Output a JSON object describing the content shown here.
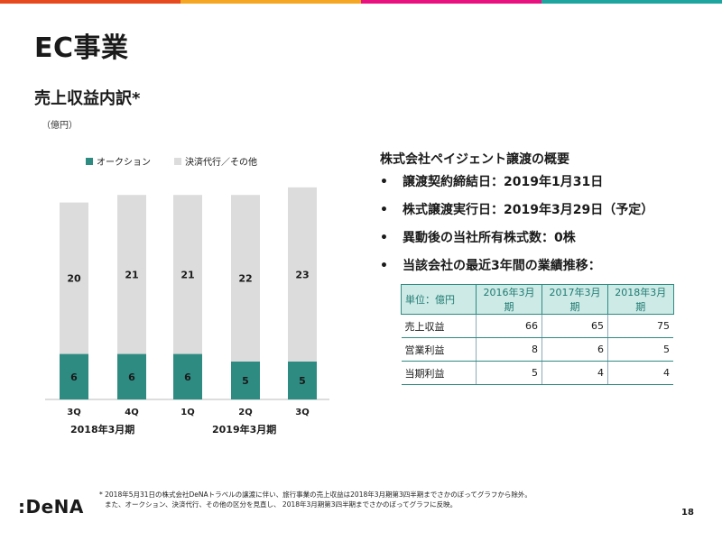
{
  "topbar": {
    "colors": [
      "#e84a1f",
      "#f5a623",
      "#e8117f",
      "#1fa5a0"
    ]
  },
  "header": {
    "title": "EC事業"
  },
  "section": {
    "subtitle": "売上収益内訳*",
    "unit": "（億円）"
  },
  "legend": [
    {
      "label": "オークション",
      "color": "#2e8b82"
    },
    {
      "label": "決済代行／その他",
      "color": "#dcdcdc"
    }
  ],
  "chart_data": {
    "type": "bar",
    "stacked": true,
    "categories": [
      "3Q",
      "4Q",
      "1Q",
      "2Q",
      "3Q"
    ],
    "series": [
      {
        "name": "オークション",
        "color": "#2e8b82",
        "values": [
          6,
          6,
          6,
          5,
          5
        ]
      },
      {
        "name": "決済代行／その他",
        "color": "#dcdcdc",
        "values": [
          20,
          21,
          21,
          22,
          23
        ]
      }
    ],
    "periods": [
      {
        "label": "2018年3月期"
      },
      {
        "label": "2019年3月期"
      }
    ],
    "xlabel": "",
    "ylabel": ""
  },
  "info": {
    "title": "株式会社ペイジェント譲渡の概要",
    "bullet_symbol": "•",
    "bullets": [
      "譲渡契約締結日：2019年1月31日",
      "株式譲渡実行日：2019年3月29日（予定）",
      "異動後の当社所有株式数：0株",
      "当該会社の最近3年間の業績推移："
    ]
  },
  "table": {
    "headers": [
      "単位：億円",
      "2016年3月期",
      "2017年3月期",
      "2018年3月期"
    ],
    "rows": [
      {
        "label": "売上収益",
        "values": [
          "66",
          "65",
          "75"
        ]
      },
      {
        "label": "営業利益",
        "values": [
          "8",
          "6",
          "5"
        ]
      },
      {
        "label": "当期利益",
        "values": [
          "5",
          "4",
          "4"
        ]
      }
    ]
  },
  "footnote": {
    "line1": "* 2018年5月31日の株式会社DeNAトラベルの譲渡に伴い、旅行事業の売上収益は2018年3月期第3四半期までさかのぼってグラフから除外。",
    "line2": "また、オークション、決済代行、その他の区分を見直し、 2018年3月期第3四半期までさかのぼってグラフに反映。"
  },
  "brand": {
    "logo": ":DeNA"
  },
  "page": {
    "number": "18"
  }
}
